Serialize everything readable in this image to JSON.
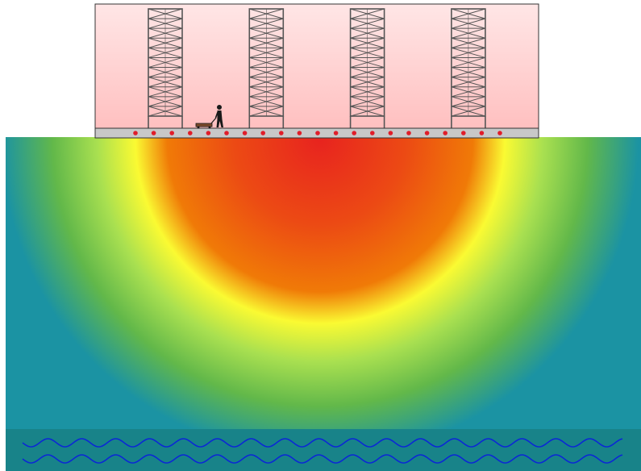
{
  "diagram": {
    "building": {
      "shelf_columns": 4,
      "floor_sensor_count": 21
    },
    "colors": {
      "room_top": "#ffe6e6",
      "room_bottom": "#ffbdbd",
      "room_outline": "#333333",
      "shelf": "#555555",
      "floor_slab": "#c8c8c8",
      "sensor_dot": "#e01e2a",
      "worker": "#1a1a1a",
      "cart": "#7a4a2a",
      "heat_core": "#e8231f",
      "heat_orange": "#f07a07",
      "heat_yellow": "#fafa32",
      "heat_green": "#a9e050",
      "soil": "#1b93a3",
      "groundwater_band": "#188389",
      "groundwater_wave": "#0b27d6"
    },
    "icons": {
      "worker": "person-pulling-cart-icon",
      "shelf": "scaffold-shelf-icon"
    },
    "groundwater": {
      "wave_lines": 2
    }
  }
}
